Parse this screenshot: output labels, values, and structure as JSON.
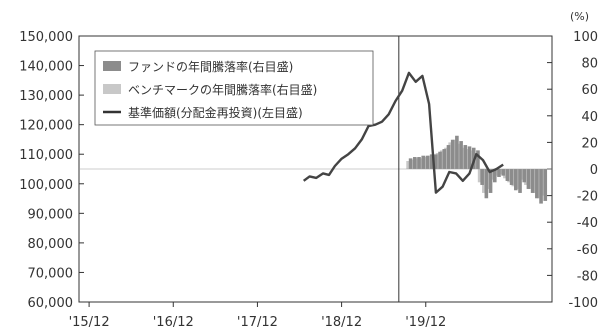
{
  "chart_data": {
    "type": "bar",
    "right_unit": "(%)",
    "left_axis": {
      "ylim": [
        60000,
        150000
      ],
      "ticks": [
        "150,000",
        "140,000",
        "130,000",
        "120,000",
        "110,000",
        "100,000",
        "90,000",
        "80,000",
        "70,000",
        "60,000"
      ]
    },
    "right_axis": {
      "ylim": [
        -100,
        100
      ],
      "ticks": [
        "100",
        "80",
        "60",
        "40",
        "20",
        "0",
        "-20",
        "-40",
        "-60",
        "-80",
        "-100"
      ]
    },
    "x_tick_labels": [
      "'15/12",
      "'16/12",
      "'17/12",
      "'18/12",
      "'19/12"
    ],
    "legend": [
      {
        "label": "ファンドの年間騰落率(右目盛)",
        "kind": "bar",
        "color": "#8c8c8c"
      },
      {
        "label": "ベンチマークの年間騰落率(右目盛)",
        "kind": "bar",
        "color": "#c8c8c8"
      },
      {
        "label": "基準価額(分配金再投資)(左目盛)",
        "kind": "line",
        "color": "#333333"
      }
    ],
    "series": [
      {
        "name": "基準価額(分配金再投資)(左目盛)",
        "axis": "left",
        "x": [
          2018.55,
          2018.62,
          2018.7,
          2018.78,
          2018.85,
          2018.92,
          2019.0,
          2019.08,
          2019.16,
          2019.24,
          2019.32,
          2019.4,
          2019.48,
          2019.56,
          2019.64,
          2019.72,
          2019.8,
          2019.88,
          2019.96,
          2020.04,
          2020.12,
          2020.2,
          2020.28,
          2020.36,
          2020.44,
          2020.52,
          2020.6,
          2020.68,
          2020.76,
          2020.84,
          2020.92
        ],
        "values": [
          101000,
          102500,
          102000,
          103500,
          103000,
          106000,
          108500,
          110000,
          112000,
          115000,
          119500,
          120000,
          121000,
          123500,
          128000,
          131500,
          137500,
          134500,
          136500,
          127000,
          97000,
          99000,
          104000,
          103500,
          101000,
          103500,
          110000,
          108000,
          104000,
          105000,
          106500
        ]
      },
      {
        "name": "ファンドの年間騰落率(右目盛)",
        "axis": "right",
        "x": [
          2019.82,
          2019.87,
          2019.92,
          2019.97,
          2020.02,
          2020.07,
          2020.12,
          2020.17,
          2020.22,
          2020.27,
          2020.32,
          2020.37,
          2020.42,
          2020.47,
          2020.52,
          2020.57,
          2020.62,
          2020.67,
          2020.72,
          2020.77,
          2020.82,
          2020.87,
          2020.92,
          2020.97,
          2021.02,
          2021.07,
          2021.12,
          2021.17,
          2021.22,
          2021.27,
          2021.32,
          2021.37,
          2021.42
        ],
        "values": [
          8,
          9,
          9,
          10,
          10,
          11,
          11,
          13,
          15,
          18,
          22,
          25,
          21,
          18,
          17,
          16,
          14,
          -12,
          -22,
          -18,
          -10,
          -6,
          -5,
          -9,
          -12,
          -16,
          -18,
          -10,
          -15,
          -18,
          -22,
          -26,
          -24
        ]
      },
      {
        "name": "ベンチマークの年間騰落率(右目盛)",
        "axis": "right",
        "x": [
          2019.79,
          2019.84,
          2019.89,
          2019.94,
          2019.99,
          2020.04,
          2020.09,
          2020.14,
          2020.19,
          2020.24,
          2020.29,
          2020.34,
          2020.39,
          2020.44,
          2020.49,
          2020.54,
          2020.59,
          2020.64,
          2020.69,
          2020.74,
          2020.79,
          2020.84,
          2020.89,
          2020.94,
          2020.99,
          2021.04,
          2021.09,
          2021.14,
          2021.19,
          2021.24,
          2021.29,
          2021.34,
          2021.39
        ],
        "values": [
          6,
          7,
          8,
          8,
          9,
          10,
          10,
          12,
          14,
          16,
          20,
          22,
          19,
          16,
          15,
          14,
          12,
          -10,
          -18,
          -15,
          -8,
          -5,
          -4,
          -7,
          -10,
          -13,
          -15,
          -8,
          -12,
          -15,
          -18,
          -22,
          -20
        ]
      }
    ],
    "x_domain": [
      2015.88,
      2021.5
    ],
    "vline_x": 2019.68,
    "x_tick_values": [
      2016.0,
      2017.0,
      2018.0,
      2019.0,
      2020.0
    ]
  }
}
